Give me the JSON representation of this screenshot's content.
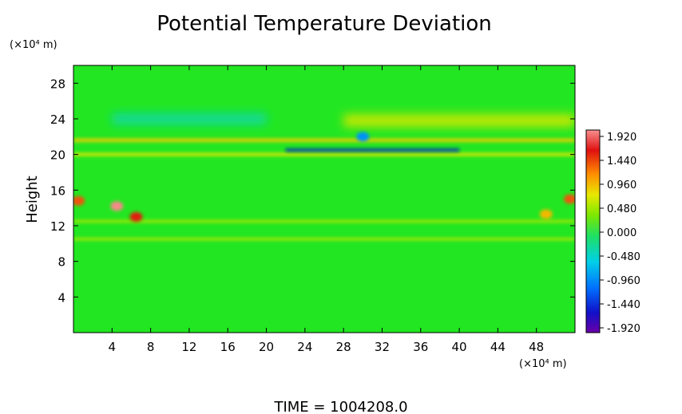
{
  "chart_data": {
    "type": "heatmap",
    "title": "Potential Temperature Deviation",
    "ylabel": "Height",
    "x_unit_label": "(×10⁴ m)",
    "y_unit_label": "(×10⁴ m)",
    "footer": "TIME = 1004208.0",
    "xlim": [
      0,
      52
    ],
    "ylim": [
      0,
      30
    ],
    "x_ticks": [
      4,
      8,
      12,
      16,
      20,
      24,
      28,
      32,
      36,
      40,
      44,
      48
    ],
    "y_ticks": [
      4,
      8,
      12,
      16,
      20,
      24,
      28
    ],
    "colorbar": {
      "labels": [
        "1.920",
        "1.440",
        "0.960",
        "0.480",
        "0.000",
        "-0.480",
        "-0.960",
        "-1.440",
        "-1.920"
      ],
      "range": [
        -1.92,
        1.92
      ]
    },
    "features": [
      {
        "kind": "band",
        "y": 20.0,
        "x_from": 0,
        "x_to": 52,
        "value": 0.7,
        "thickness": 0.35
      },
      {
        "kind": "band",
        "y": 21.6,
        "x_from": 0,
        "x_to": 52,
        "value": 0.8,
        "thickness": 0.4
      },
      {
        "kind": "band",
        "y": 20.5,
        "x_from": 22,
        "x_to": 40,
        "value": -1.5,
        "thickness": 0.3
      },
      {
        "kind": "band",
        "y": 23.8,
        "x_from": 28,
        "x_to": 52,
        "value": 0.6,
        "thickness": 1.4
      },
      {
        "kind": "band",
        "y": 24.0,
        "x_from": 4,
        "x_to": 20,
        "value": -0.35,
        "thickness": 1.2
      },
      {
        "kind": "band",
        "y": 12.5,
        "x_from": 0,
        "x_to": 52,
        "value": 0.5,
        "thickness": 0.3
      },
      {
        "kind": "band",
        "y": 10.5,
        "x_from": 0,
        "x_to": 52,
        "value": 0.6,
        "thickness": 0.25
      },
      {
        "kind": "blob",
        "x": 4.5,
        "y": 14.2,
        "value": 1.9
      },
      {
        "kind": "blob",
        "x": 6.5,
        "y": 13.0,
        "value": 1.5
      },
      {
        "kind": "blob",
        "x": 0.5,
        "y": 14.8,
        "value": 1.3
      },
      {
        "kind": "blob",
        "x": 51.5,
        "y": 15.0,
        "value": 1.3
      },
      {
        "kind": "blob",
        "x": 49.0,
        "y": 13.3,
        "value": 0.9
      },
      {
        "kind": "blob",
        "x": 30.0,
        "y": 22.0,
        "value": -0.9
      }
    ]
  }
}
